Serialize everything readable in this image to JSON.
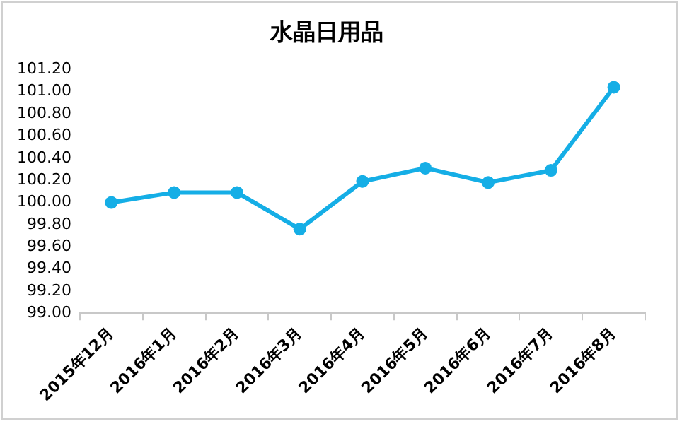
{
  "chart_data": {
    "type": "line",
    "title": "水晶日用品",
    "categories": [
      "2015年12月",
      "2016年1月",
      "2016年2月",
      "2016年3月",
      "2016年4月",
      "2016年5月",
      "2016年6月",
      "2016年7月",
      "2016年8月"
    ],
    "series": [
      {
        "color": "#15aee6",
        "values": [
          100.0,
          100.09,
          100.09,
          99.76,
          100.19,
          100.31,
          100.18,
          100.29,
          101.04
        ]
      }
    ],
    "ylim": [
      99.0,
      101.2
    ],
    "yticks": [
      {
        "value": 99.0,
        "label": "99.00"
      },
      {
        "value": 99.2,
        "label": "99.20"
      },
      {
        "value": 99.4,
        "label": "99.40"
      },
      {
        "value": 99.6,
        "label": "99.60"
      },
      {
        "value": 99.8,
        "label": "99.80"
      },
      {
        "value": 100.0,
        "label": "100.00"
      },
      {
        "value": 100.2,
        "label": "100.20"
      },
      {
        "value": 100.4,
        "label": "100.40"
      },
      {
        "value": 100.6,
        "label": "100.60"
      },
      {
        "value": 100.8,
        "label": "100.80"
      },
      {
        "value": 101.0,
        "label": "101.00"
      },
      {
        "value": 101.2,
        "label": "101.20"
      }
    ],
    "grid": false,
    "legend": false,
    "marker": "circle"
  }
}
